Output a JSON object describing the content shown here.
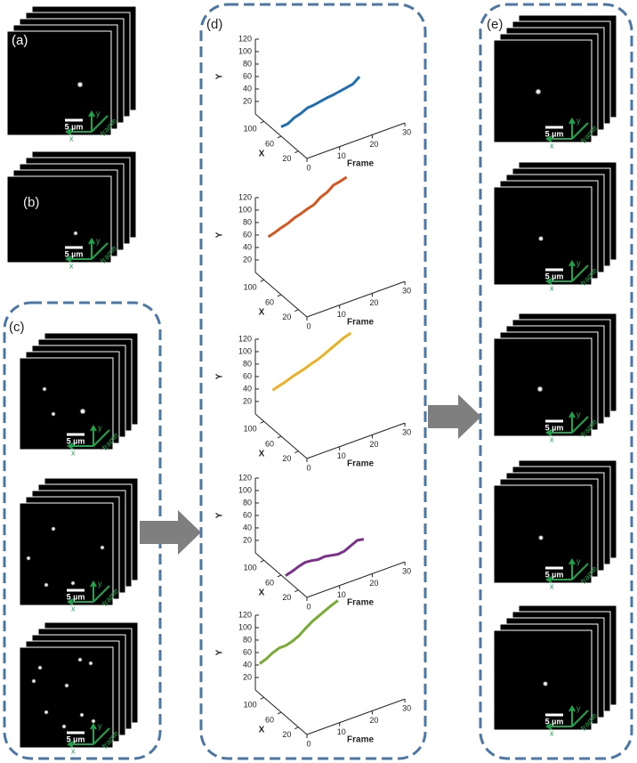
{
  "labels": {
    "a": "(a)",
    "b": "(b)",
    "c": "(c)",
    "d": "(d)",
    "e": "(e)"
  },
  "image_stacks": [
    {
      "scale_bar": "5 µm",
      "x_axis": "x",
      "y_axis": "y",
      "frame_axis": "frame"
    },
    {
      "scale_bar": "5 µm",
      "x_axis": "x",
      "y_axis": "y",
      "frame_axis": "frame"
    },
    {
      "scale_bar": "5 µm",
      "x_axis": "x",
      "y_axis": "y",
      "frame_axis": "frame"
    },
    {
      "scale_bar": "5 µm",
      "x_axis": "x",
      "y_axis": "y",
      "frame_axis": "frame"
    },
    {
      "scale_bar": "5 µm",
      "x_axis": "x",
      "y_axis": "y",
      "frame_axis": "frame"
    },
    {
      "scale_bar": "5 µm",
      "x_axis": "x",
      "y_axis": "y",
      "frame_axis": "frame"
    },
    {
      "scale_bar": "5 µm",
      "x_axis": "x",
      "y_axis": "y",
      "frame_axis": "frame"
    },
    {
      "scale_bar": "5 µm",
      "x_axis": "x",
      "y_axis": "y",
      "frame_axis": "frame"
    },
    {
      "scale_bar": "5 µm",
      "x_axis": "x",
      "y_axis": "y",
      "frame_axis": "frame"
    },
    {
      "scale_bar": "5 µm",
      "x_axis": "x",
      "y_axis": "y",
      "frame_axis": "frame"
    }
  ],
  "plots": [
    {
      "type": "line3d",
      "y_label": "Y",
      "x_label": "X",
      "frame_label": "Frame",
      "ylim": [
        0,
        120
      ],
      "xlim": [
        0,
        120
      ],
      "framelim": [
        0,
        30
      ],
      "yticks": [
        20,
        40,
        60,
        80,
        100,
        120
      ],
      "xticks": [
        20,
        60,
        100
      ],
      "frameticks": [
        0,
        10,
        20,
        30
      ],
      "trajectory": {
        "color": "#1f6fb5",
        "x_value": 60,
        "frames": [
          0,
          2,
          4,
          6,
          8,
          10,
          12,
          14,
          16,
          18,
          20,
          22,
          24
        ],
        "y": [
          15,
          16,
          22,
          25,
          30,
          31,
          33,
          35,
          36,
          38,
          40,
          42,
          50
        ]
      }
    },
    {
      "type": "line3d",
      "y_label": "Y",
      "x_label": "X",
      "frame_label": "Frame",
      "ylim": [
        0,
        120
      ],
      "xlim": [
        0,
        120
      ],
      "framelim": [
        0,
        30
      ],
      "yticks": [
        20,
        40,
        60,
        80,
        100,
        120
      ],
      "xticks": [
        20,
        60,
        100
      ],
      "frameticks": [
        0,
        10,
        20,
        30
      ],
      "trajectory": {
        "color": "#d9541a",
        "x_value": 90,
        "frames": [
          0,
          2,
          4,
          6,
          8,
          10,
          12,
          14,
          16,
          18,
          20,
          22,
          24
        ],
        "y": [
          75,
          78,
          82,
          85,
          90,
          93,
          97,
          100,
          108,
          112,
          120,
          122,
          125
        ]
      }
    },
    {
      "type": "line3d",
      "y_label": "Y",
      "x_label": "X",
      "frame_label": "Frame",
      "ylim": [
        0,
        120
      ],
      "xlim": [
        0,
        120
      ],
      "framelim": [
        0,
        30
      ],
      "yticks": [
        20,
        40,
        60,
        80,
        100,
        120
      ],
      "xticks": [
        20,
        60,
        100
      ],
      "frameticks": [
        0,
        10,
        20,
        30
      ],
      "trajectory": {
        "color": "#edb120",
        "x_value": 80,
        "frames": [
          0,
          2,
          4,
          6,
          8,
          10,
          12,
          14,
          16,
          18,
          20,
          22,
          24
        ],
        "y": [
          62,
          65,
          68,
          72,
          75,
          78,
          82,
          85,
          90,
          95,
          100,
          105,
          108
        ]
      }
    },
    {
      "type": "line3d",
      "y_label": "Y",
      "x_label": "X",
      "frame_label": "Frame",
      "ylim": [
        0,
        120
      ],
      "xlim": [
        0,
        120
      ],
      "framelim": [
        0,
        30
      ],
      "yticks": [
        20,
        40,
        60,
        80,
        100,
        120
      ],
      "xticks": [
        20,
        60,
        100
      ],
      "frameticks": [
        0,
        10,
        20,
        30
      ],
      "trajectory": {
        "color": "#7e2f8e",
        "x_value": 50,
        "frames": [
          0,
          2,
          4,
          6,
          8,
          10,
          12,
          14,
          16,
          18,
          20,
          22,
          24
        ],
        "y": [
          5,
          8,
          12,
          15,
          14,
          12,
          13,
          11,
          9,
          10,
          15,
          20,
          18
        ]
      }
    },
    {
      "type": "line3d",
      "y_label": "Y",
      "x_label": "X",
      "frame_label": "Frame",
      "ylim": [
        0,
        120
      ],
      "xlim": [
        0,
        120
      ],
      "framelim": [
        0,
        30
      ],
      "yticks": [
        20,
        40,
        60,
        80,
        100,
        120
      ],
      "xticks": [
        20,
        60,
        100
      ],
      "frameticks": [
        0,
        10,
        20,
        30
      ],
      "trajectory": {
        "color": "#77ac30",
        "x_value": 110,
        "frames": [
          0,
          2,
          4,
          6,
          8,
          10,
          12,
          14,
          16,
          18,
          20,
          22,
          24
        ],
        "y": [
          48,
          52,
          58,
          62,
          62,
          65,
          70,
          78,
          85,
          90,
          95,
          100,
          104
        ]
      }
    }
  ]
}
